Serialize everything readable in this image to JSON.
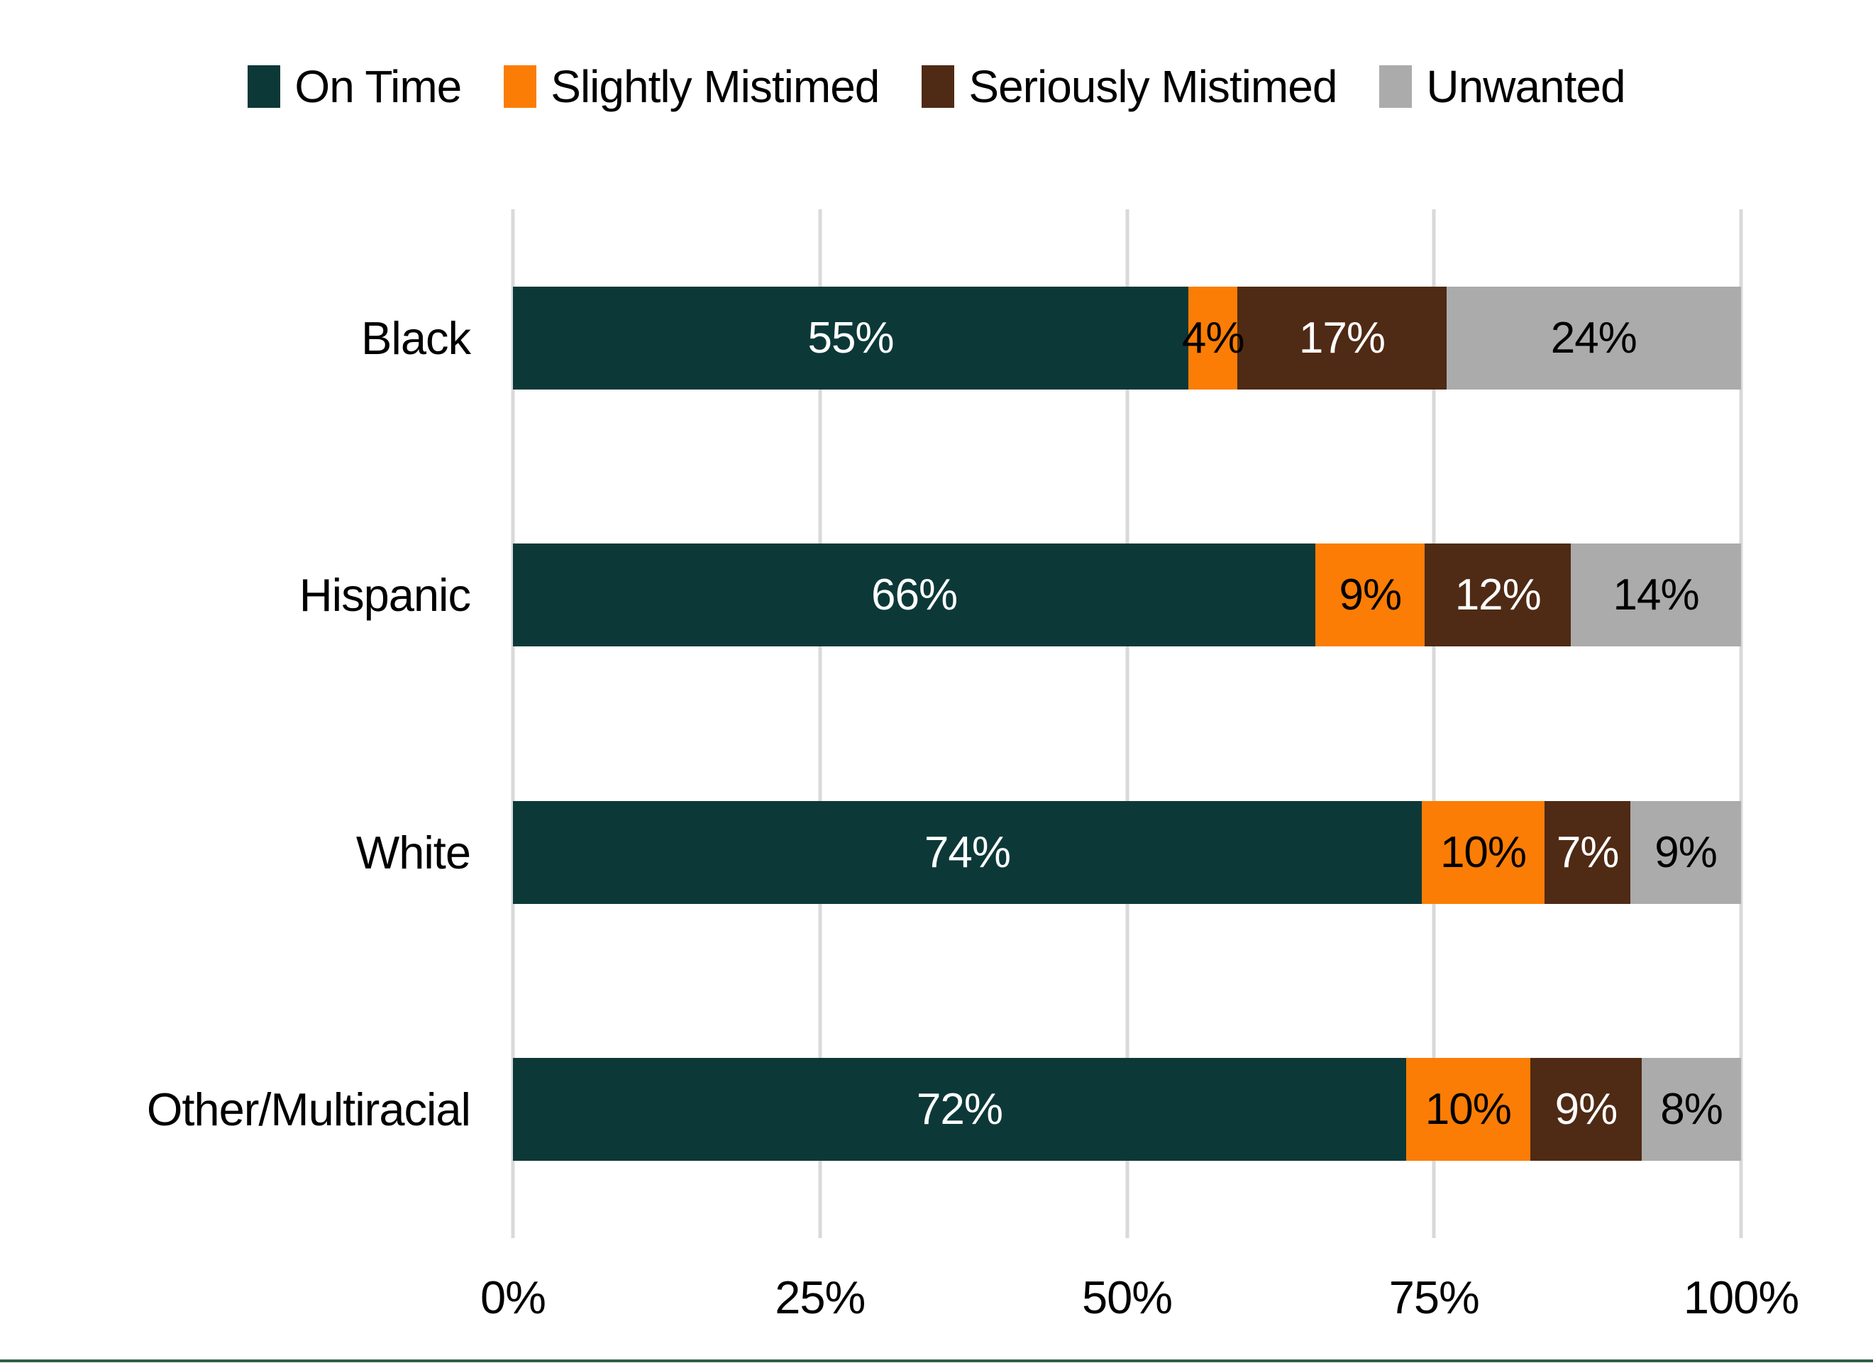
{
  "chart_data": {
    "type": "bar",
    "orientation": "horizontal",
    "stacked": true,
    "normalized_to_100": true,
    "title": "",
    "xlabel": "",
    "ylabel": "",
    "categories": [
      "Black",
      "Hispanic",
      "White",
      "Other/Multiracial"
    ],
    "series": [
      {
        "name": "On Time",
        "color": "#0c3938",
        "label_color": "#ffffff",
        "values": [
          55,
          66,
          74,
          72
        ]
      },
      {
        "name": "Slightly Mistimed",
        "color": "#fb7d05",
        "label_color": "#000000",
        "values": [
          4,
          9,
          10,
          10
        ]
      },
      {
        "name": "Seriously Mistimed",
        "color": "#4f2a15",
        "label_color": "#ffffff",
        "values": [
          17,
          12,
          7,
          9
        ]
      },
      {
        "name": "Unwanted",
        "color": "#ababab",
        "label_color": "#000000",
        "values": [
          24,
          14,
          9,
          8
        ]
      }
    ],
    "data_label_suffix": "%",
    "x_ticks": [
      "0%",
      "25%",
      "50%",
      "75%",
      "100%"
    ],
    "xlim": [
      0,
      100
    ],
    "grid": "vertical",
    "gridline_color": "#d9d9d9",
    "legend_position": "top",
    "background_color": "#ffffff",
    "bottom_rule_color": "#2e5e45"
  }
}
